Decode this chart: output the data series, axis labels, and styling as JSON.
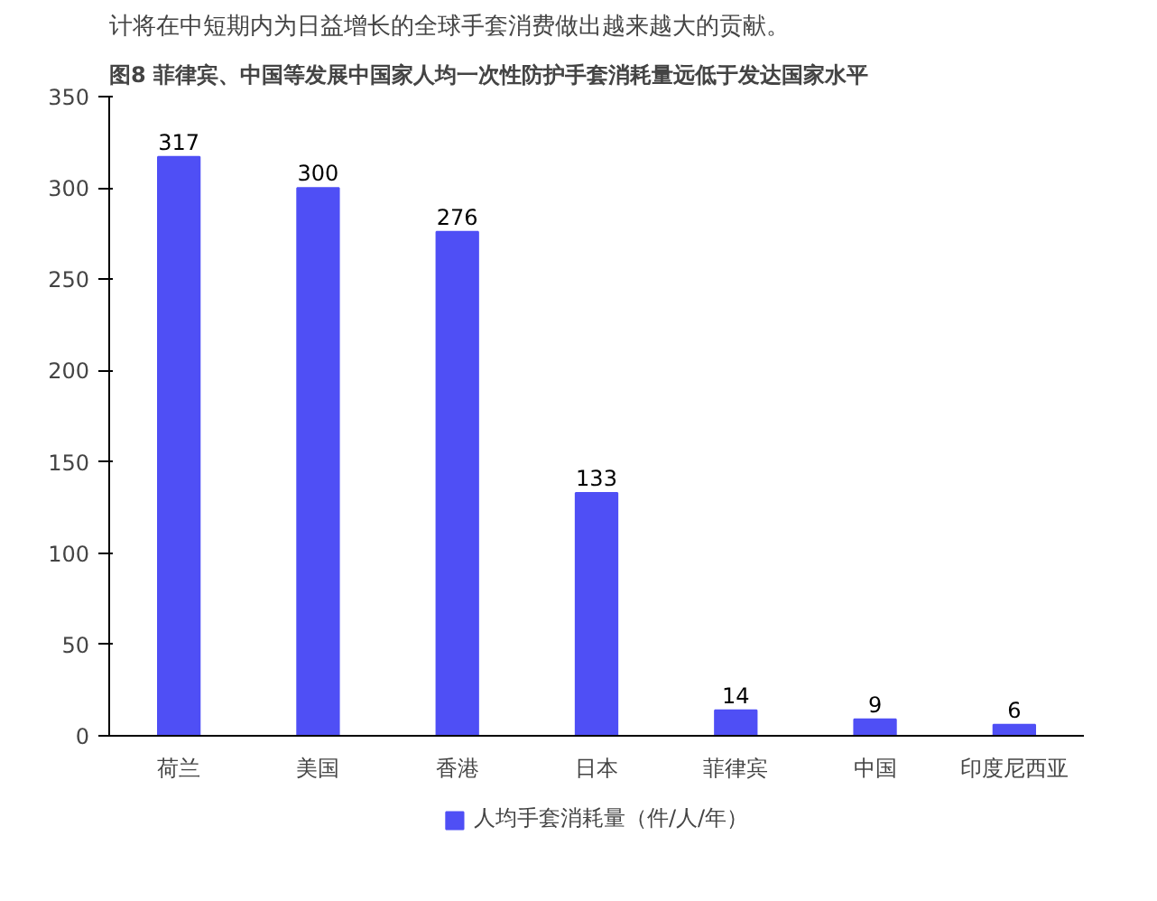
{
  "chart_data": {
    "type": "bar",
    "title": "图8 菲律宾、中国等发展中国家人均一次性防护手套消耗量远低于发达国家水平",
    "annotations": [
      "计将在中短期内为日益增长的全球手套消费做出越来越大的贡献。"
    ],
    "categories": [
      "荷兰",
      "美国",
      "香港",
      "日本",
      "菲律宾",
      "中国",
      "印度尼西亚"
    ],
    "series": [
      {
        "name": "人均手套消耗量（件/人/年）",
        "color": "#4f4ff5",
        "values": [
          317,
          300,
          276,
          133,
          14,
          9,
          6
        ]
      }
    ],
    "ylim": [
      0,
      350
    ],
    "yticks": [
      0,
      50,
      100,
      150,
      200,
      250,
      300,
      350
    ],
    "data_labels": true,
    "grid": false,
    "legend": "bottom"
  }
}
